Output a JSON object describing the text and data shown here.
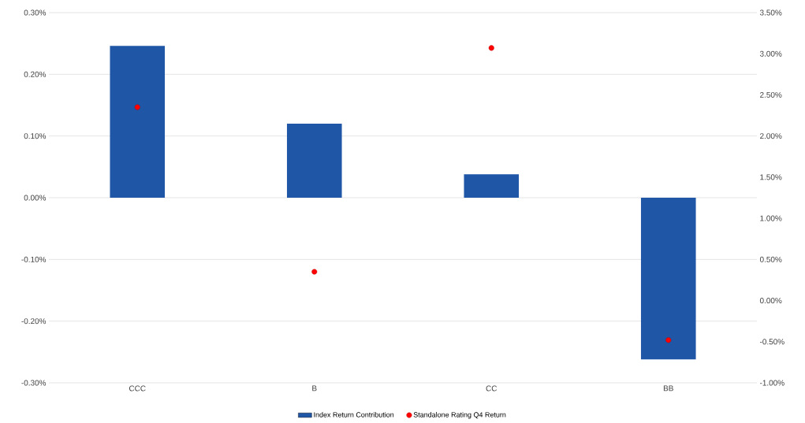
{
  "chart_data": {
    "type": "bar",
    "categories": [
      "CCC",
      "B",
      "CC",
      "BB"
    ],
    "series": [
      {
        "name": "Index Return Contribution",
        "color": "#1f56a6",
        "values": [
          0.246,
          0.12,
          0.038,
          -0.262
        ]
      },
      {
        "name": "Standalone Rating Q4 Return",
        "type": "scatter",
        "axis": "y2",
        "color": "#ff0000",
        "values": [
          2.35,
          0.35,
          3.07,
          -0.48
        ]
      }
    ],
    "ylim": [
      -0.3,
      0.3
    ],
    "yticks": [
      {
        "value": -0.3,
        "label": "-0.30%"
      },
      {
        "value": -0.2,
        "label": "-0.20%"
      },
      {
        "value": -0.1,
        "label": "-0.10%"
      },
      {
        "value": 0,
        "label": "0.00%"
      },
      {
        "value": 0.1,
        "label": "0.10%"
      },
      {
        "value": 0.2,
        "label": "0.20%"
      },
      {
        "value": 0.3,
        "label": "0.30%"
      }
    ],
    "y2lim": [
      -1,
      3.5
    ],
    "y2ticks": [
      {
        "value": -1,
        "label": "-1.00%"
      },
      {
        "value": -0.5,
        "label": "-0.50%"
      },
      {
        "value": 0,
        "label": "0.00%"
      },
      {
        "value": 0.5,
        "label": "0.50%"
      },
      {
        "value": 1,
        "label": "1.00%"
      },
      {
        "value": 1.5,
        "label": "1.50%"
      },
      {
        "value": 2,
        "label": "2.00%"
      },
      {
        "value": 2.5,
        "label": "2.50%"
      },
      {
        "value": 3,
        "label": "3.00%"
      },
      {
        "value": 3.5,
        "label": "3.50%"
      }
    ],
    "grid": "y",
    "legend": "bottom"
  }
}
